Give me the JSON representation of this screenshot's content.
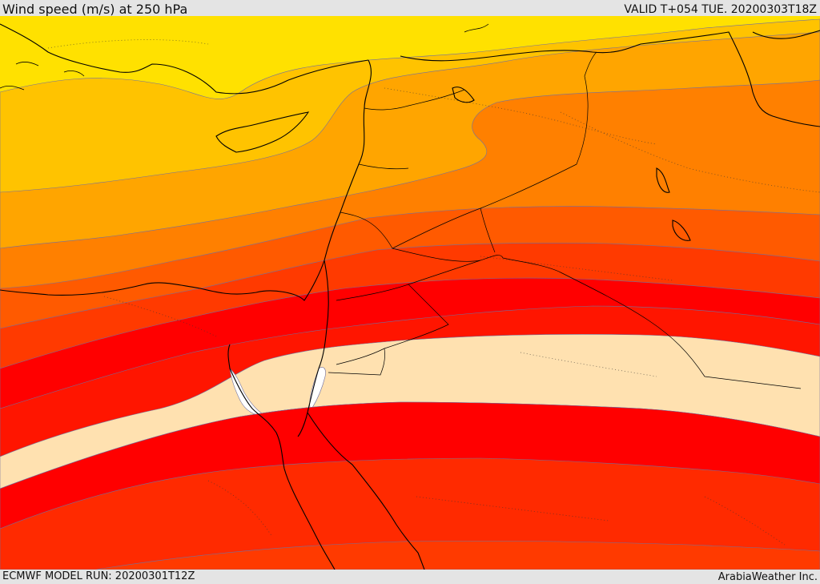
{
  "header": {
    "title": "Wind speed (m/s) at 250 hPa",
    "valid": "VALID T+054 TUE. 20200303T18Z"
  },
  "footer": {
    "model_run": "ECMWF MODEL RUN: 20200301T12Z",
    "credit": "ArabiaWeather Inc."
  },
  "colors": {
    "band_1": "#ffe100",
    "band_2": "#ffc300",
    "band_3": "#ffa500",
    "band_4": "#ff8000",
    "band_5": "#ff5a00",
    "band_6": "#ff3a00",
    "band_7": "#ff0000",
    "band_8": "#ff2a00",
    "jet_core": "#ffe1b0",
    "jet_max": "#ffffff",
    "coastline": "#000000",
    "contour": "#5050a0"
  }
}
